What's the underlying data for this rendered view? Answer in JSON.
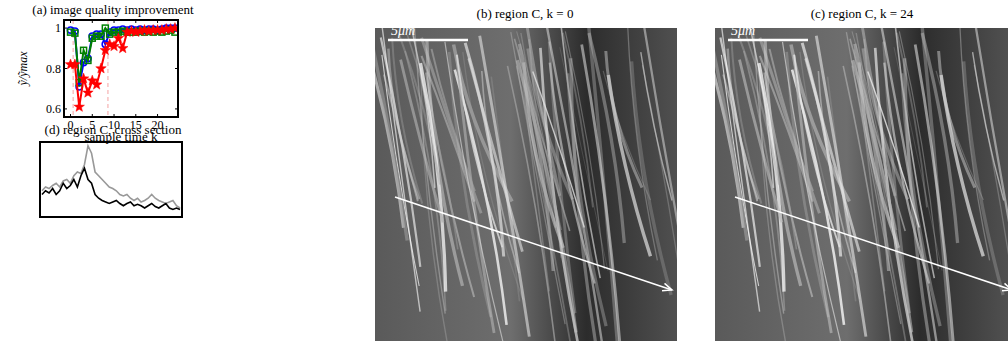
{
  "chart_data": [
    {
      "type": "line",
      "title": "(a) image quality improvement",
      "xlabel": "sample time k",
      "ylabel": "ỹ/ỹmax",
      "x": [
        0,
        1,
        2,
        3,
        4,
        5,
        6,
        7,
        8,
        9,
        10,
        11,
        12,
        13,
        14,
        15,
        16,
        17,
        18,
        19,
        20,
        21,
        22,
        23,
        24
      ],
      "series": [
        {
          "color": "#0000ff",
          "marker": "circle",
          "values": [
            0.99,
            0.985,
            0.71,
            0.83,
            0.85,
            0.96,
            0.97,
            0.97,
            0.92,
            0.98,
            0.99,
            0.99,
            0.995,
            0.99,
            0.995,
            0.99,
            0.995,
            0.99,
            0.995,
            0.995,
            0.99,
            0.995,
            1.0,
            1.0,
            1.0
          ]
        },
        {
          "color": "#008000",
          "marker": "square",
          "values": [
            0.98,
            0.975,
            0.73,
            0.89,
            0.84,
            0.95,
            0.96,
            0.96,
            1.0,
            0.97,
            0.98,
            0.98,
            0.985,
            0.98,
            0.98,
            0.98,
            0.985,
            0.98,
            0.985,
            0.98,
            0.985,
            0.98,
            0.985,
            0.99,
            0.98
          ]
        },
        {
          "color": "#ff0000",
          "marker": "star",
          "values": [
            0.82,
            0.82,
            0.61,
            0.75,
            0.68,
            0.74,
            0.72,
            0.8,
            0.89,
            0.92,
            0.91,
            0.95,
            0.9,
            0.98,
            0.985,
            0.98,
            0.985,
            0.99,
            0.985,
            0.99,
            0.99,
            0.99,
            0.995,
            0.995,
            1.0
          ]
        }
      ],
      "vlines": [
        0.6,
        8.6
      ],
      "xlim": [
        -1.5,
        24.7
      ],
      "xticks": [
        0,
        5,
        10,
        15,
        20
      ],
      "ylim": [
        0.56,
        1.04
      ],
      "yticks": [
        0.6,
        0.8,
        1
      ]
    },
    {
      "type": "line",
      "title": "(d) region C, cross section",
      "tick_labels": false,
      "ylim": [
        0,
        1
      ],
      "series": [
        {
          "color": "#999999",
          "values": [
            0.35,
            0.4,
            0.38,
            0.42,
            0.45,
            0.4,
            0.48,
            0.5,
            0.45,
            0.55,
            0.6,
            0.58,
            0.7,
            0.95,
            0.85,
            0.6,
            0.55,
            0.5,
            0.45,
            0.4,
            0.38,
            0.35,
            0.3,
            0.28,
            0.3,
            0.25,
            0.22,
            0.25,
            0.2,
            0.22,
            0.25,
            0.3,
            0.25,
            0.22,
            0.2,
            0.18,
            0.2,
            0.22,
            0.15,
            0.12
          ]
        },
        {
          "color": "#000000",
          "values": [
            0.3,
            0.35,
            0.32,
            0.38,
            0.3,
            0.35,
            0.45,
            0.38,
            0.42,
            0.5,
            0.4,
            0.55,
            0.65,
            0.5,
            0.45,
            0.3,
            0.25,
            0.22,
            0.2,
            0.18,
            0.2,
            0.22,
            0.18,
            0.15,
            0.18,
            0.2,
            0.15,
            0.17,
            0.15,
            0.12,
            0.15,
            0.18,
            0.14,
            0.12,
            0.15,
            0.18,
            0.12,
            0.1,
            0.12,
            0.1
          ]
        }
      ]
    }
  ],
  "images": [
    {
      "title": "(b) region C, k = 0",
      "scale_bar": "5μm"
    },
    {
      "title": "(c) region C, k = 24",
      "scale_bar": "5μm"
    }
  ]
}
